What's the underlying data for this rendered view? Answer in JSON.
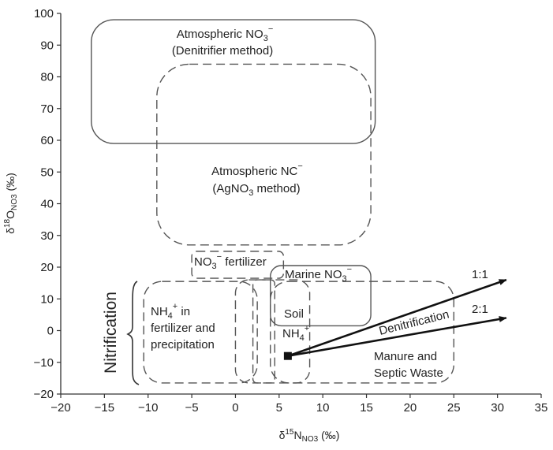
{
  "chart_data": {
    "type": "diagram-regions",
    "xlabel": {
      "main": "δ",
      "sup": "15",
      "n": "N",
      "sub": "NO3",
      "unit": " (‰)"
    },
    "ylabel": {
      "main": "δ",
      "sup": "18",
      "n": "O",
      "sub": "NO3",
      "unit": " (‰)"
    },
    "xlim": [
      -20,
      35
    ],
    "ylim": [
      -20,
      100
    ],
    "xticks": [
      -20,
      -15,
      -10,
      -5,
      0,
      5,
      10,
      15,
      20,
      25,
      30,
      35
    ],
    "yticks": [
      -20,
      -10,
      0,
      10,
      20,
      30,
      40,
      50,
      60,
      70,
      80,
      90,
      100
    ],
    "xtick_labels": [
      "−20",
      "−15",
      "−10",
      "−5",
      "0",
      "5",
      "10",
      "15",
      "20",
      "25",
      "30",
      "35"
    ],
    "ytick_labels": [
      "−20",
      "−10",
      "0",
      "10",
      "20",
      "30",
      "40",
      "50",
      "60",
      "70",
      "80",
      "90",
      "100"
    ],
    "regions": [
      {
        "name": "Atmospheric NO3 (Denitrifier method)",
        "style": "solid",
        "x": [
          -16.5,
          16
        ],
        "y": [
          59,
          98
        ]
      },
      {
        "name": "Atmospheric NO3 (AgNO3 method)",
        "style": "dashed",
        "x": [
          -9,
          15.5
        ],
        "y": [
          27,
          84
        ]
      },
      {
        "name": "NO3 fertilizer",
        "style": "dashed",
        "x": [
          -5,
          5.5
        ],
        "y": [
          16.5,
          25
        ]
      },
      {
        "name": "Marine NO3",
        "style": "solid",
        "x": [
          4,
          15.5
        ],
        "y": [
          1.5,
          20.5
        ]
      },
      {
        "name": "NH4 in fertilizer and precipitation",
        "style": "dashed",
        "x": [
          -10.5,
          2.5
        ],
        "y": [
          -16.5,
          15.5
        ]
      },
      {
        "name": "Soil NH4",
        "style": "dashed",
        "x": [
          0,
          8.5
        ],
        "y": [
          -16.5,
          16
        ]
      },
      {
        "name": "Soil NH4 inner",
        "style": "dashed",
        "x": [
          2,
          4.5
        ],
        "y": [
          -16.5,
          16
        ]
      },
      {
        "name": "Manure and Septic Waste",
        "style": "dashed",
        "x": [
          4,
          25
        ],
        "y": [
          -16.5,
          15.5
        ]
      }
    ],
    "origin_point": {
      "x": 6,
      "y": -8
    },
    "arrows": [
      {
        "label": "1:1",
        "from": [
          6,
          -8
        ],
        "to": [
          31,
          16
        ]
      },
      {
        "label": "2:1",
        "from": [
          6,
          -8
        ],
        "to": [
          31,
          4
        ]
      }
    ],
    "labels": {
      "atm_denit_line1": "Atmospheric NO",
      "atm_denit_sub": "3",
      "atm_denit_sup": "−",
      "atm_denit_line2": "(Denitrifier method)",
      "atm_ag_line1": "Atmospheric NC",
      "atm_ag_sup": "−",
      "atm_ag_line2_a": "(AgNO",
      "atm_ag_line2_sub": "3",
      "atm_ag_line2_b": " method)",
      "fert_a": "NO",
      "fert_sub": "3",
      "fert_sup": "−",
      "fert_b": " fertilizer",
      "marine_a": "Marine NO",
      "marine_sub": "3",
      "marine_sup": "−",
      "nh4_line1_a": "NH",
      "nh4_line1_sub": "4",
      "nh4_line1_sup": "+",
      "nh4_line1_b": " in",
      "nh4_line2": "fertilizer and",
      "nh4_line3": "precipitation",
      "soil_line1": "Soil",
      "soil_line2_a": "NH",
      "soil_line2_sub": "4",
      "soil_line2_sup": "+",
      "manure_line1": "Manure and",
      "manure_line2": "Septic Waste",
      "denitrification": "Denitrification",
      "ratio_1_1": "1:1",
      "ratio_2_1": "2:1",
      "nitrification": "Nitrification"
    }
  }
}
